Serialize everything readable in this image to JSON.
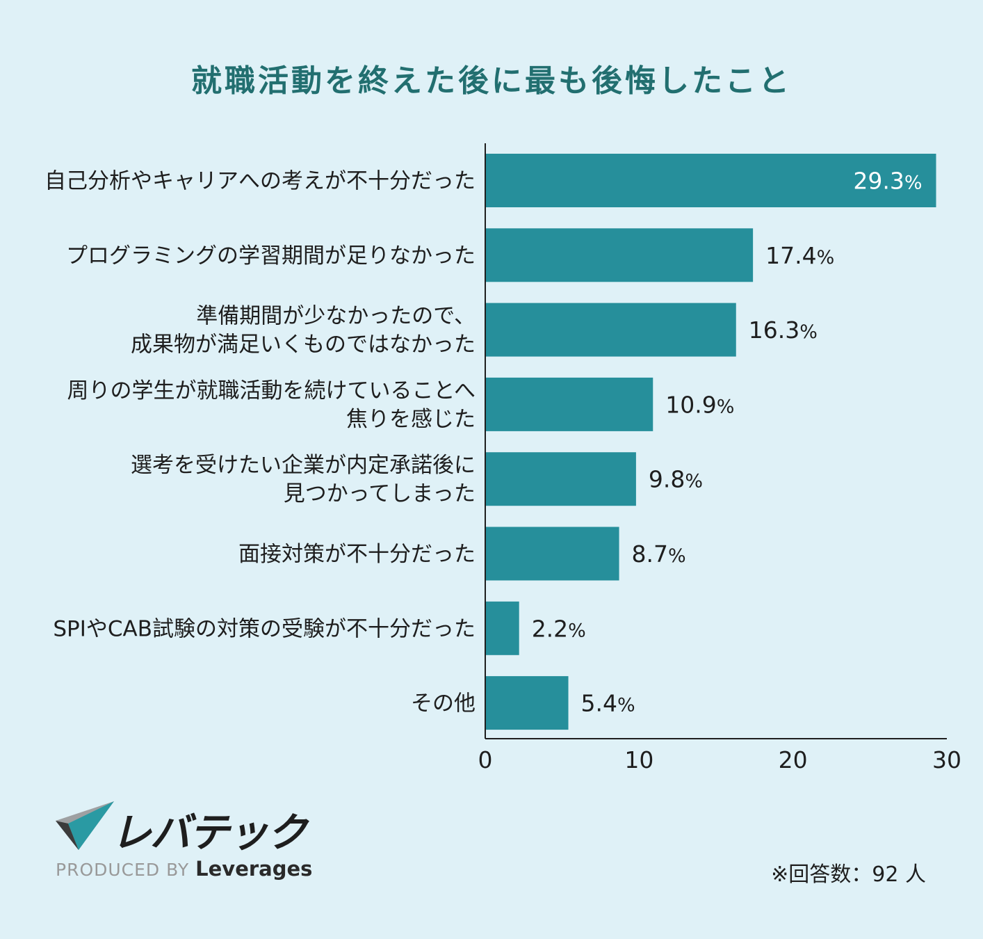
{
  "title": "就職活動を終えた後に最も後悔したこと",
  "chart_data": {
    "type": "bar",
    "orientation": "horizontal",
    "title": "就職活動を終えた後に最も後悔したこと",
    "categories": [
      [
        "自己分析やキャリアへの考えが不十分だった"
      ],
      [
        "プログラミングの学習期間が足りなかった"
      ],
      [
        "準備期間が少なかったので、",
        "成果物が満足いくものではなかった"
      ],
      [
        "周りの学生が就職活動を続けていることへ",
        "焦りを感じた"
      ],
      [
        "選考を受けたい企業が内定承諾後に",
        "見つかってしまった"
      ],
      [
        "面接対策が不十分だった"
      ],
      [
        "SPIやCAB試験の対策の受験が不十分だった"
      ],
      [
        "その他"
      ]
    ],
    "values": [
      29.3,
      17.4,
      16.3,
      10.9,
      9.8,
      8.7,
      2.2,
      5.4
    ],
    "value_labels": [
      "29.3",
      "17.4",
      "16.3",
      "10.9",
      "9.8",
      "8.7",
      "2.2",
      "5.4"
    ],
    "value_suffix": "%",
    "xlim": [
      0,
      30
    ],
    "xticks": [
      "0",
      "10",
      "20",
      "30"
    ],
    "bar_color": "#268f9b"
  },
  "logo": {
    "wordmark": "レバテック",
    "produced_by": "PRODUCED BY",
    "brand": "Leverages"
  },
  "footnote": "※回答数：92 人"
}
